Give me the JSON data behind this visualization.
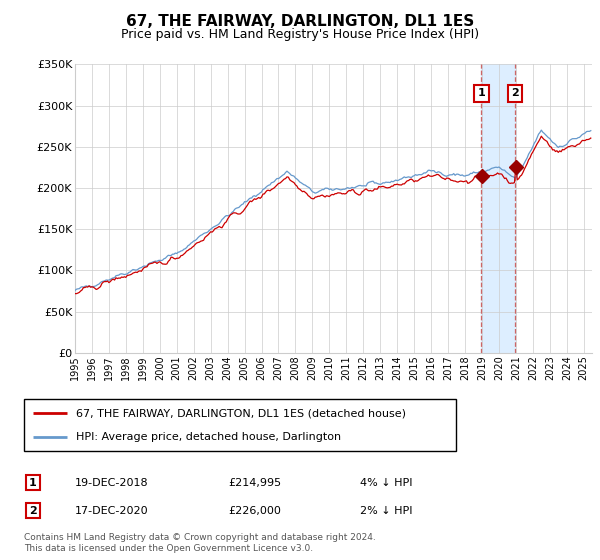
{
  "title": "67, THE FAIRWAY, DARLINGTON, DL1 1ES",
  "subtitle": "Price paid vs. HM Land Registry's House Price Index (HPI)",
  "legend_line1": "67, THE FAIRWAY, DARLINGTON, DL1 1ES (detached house)",
  "legend_line2": "HPI: Average price, detached house, Darlington",
  "annotation1_num": "1",
  "annotation1_date": "19-DEC-2018",
  "annotation1_price": "£214,995",
  "annotation1_hpi": "4% ↓ HPI",
  "annotation2_num": "2",
  "annotation2_date": "17-DEC-2020",
  "annotation2_price": "£226,000",
  "annotation2_hpi": "2% ↓ HPI",
  "footer": "Contains HM Land Registry data © Crown copyright and database right 2024.\nThis data is licensed under the Open Government Licence v3.0.",
  "sale1_year": 2018.96,
  "sale1_value": 214995,
  "sale2_year": 2020.96,
  "sale2_value": 226000,
  "ylim_min": 0,
  "ylim_max": 350000,
  "xlim_min": 1995.0,
  "xlim_max": 2025.5,
  "hpi_color": "#6699cc",
  "price_color": "#cc0000",
  "shade_color": "#ddeeff",
  "vline_color": "#cc6666",
  "grid_color": "#cccccc",
  "bg_color": "#ffffff",
  "dot_color": "#990000"
}
